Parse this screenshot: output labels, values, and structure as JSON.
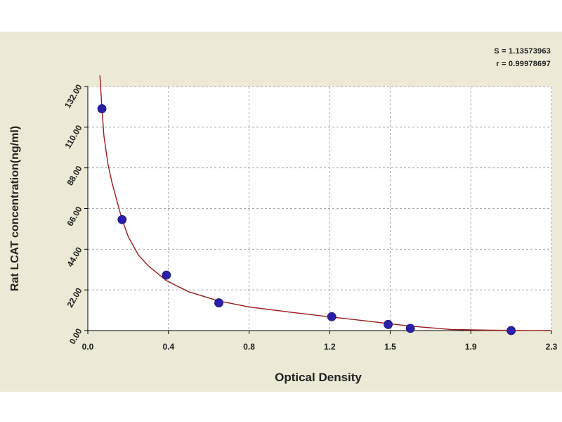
{
  "colors": {
    "panel_bg": "#ecead6",
    "plot_bg": "#ffffff",
    "grid": "#a8a8a8",
    "curve": "#9b1b1b",
    "points": "#2a1fa8",
    "text": "#202020"
  },
  "chart_data": {
    "type": "scatter",
    "title": "",
    "xlabel": "Optical Density",
    "ylabel": "Rat LCAT concentration(ng/ml)",
    "xlim": [
      0.0,
      2.3
    ],
    "ylim": [
      0,
      132
    ],
    "x_ticks": [
      0.0,
      0.4,
      0.8,
      1.2,
      1.5,
      1.9,
      2.3
    ],
    "x_tick_labels": [
      "0.0",
      "0.4",
      "0.8",
      "1.2",
      "1.5",
      "1.9",
      "2.3"
    ],
    "y_ticks": [
      0,
      22,
      44,
      66,
      88,
      110,
      132
    ],
    "y_tick_labels": [
      "0.00",
      "22.00",
      "44.00",
      "66.00",
      "88.00",
      "110.00",
      "132.00"
    ],
    "grid": true,
    "series": [
      {
        "kind": "points",
        "x": [
          0.07,
          0.17,
          0.39,
          0.65,
          1.21,
          1.49,
          1.6,
          2.1
        ],
        "y": [
          120,
          60,
          30,
          15,
          7.5,
          3.3,
          1.2,
          0
        ]
      },
      {
        "kind": "fitted-curve",
        "x": [
          0.06,
          0.07,
          0.08,
          0.1,
          0.12,
          0.15,
          0.17,
          0.2,
          0.25,
          0.3,
          0.39,
          0.5,
          0.65,
          0.8,
          1.0,
          1.21,
          1.4,
          1.6,
          1.8,
          2.0,
          2.2,
          2.3
        ],
        "y": [
          138,
          120,
          105,
          90,
          80,
          68,
          60,
          51,
          41,
          35,
          27,
          21,
          16,
          12.8,
          10,
          7.3,
          5,
          2.4,
          0.6,
          0.2,
          0.05,
          0
        ]
      }
    ]
  },
  "stats": {
    "s_line": "S = 1.13573963",
    "r_line": "r = 0.99978697"
  }
}
